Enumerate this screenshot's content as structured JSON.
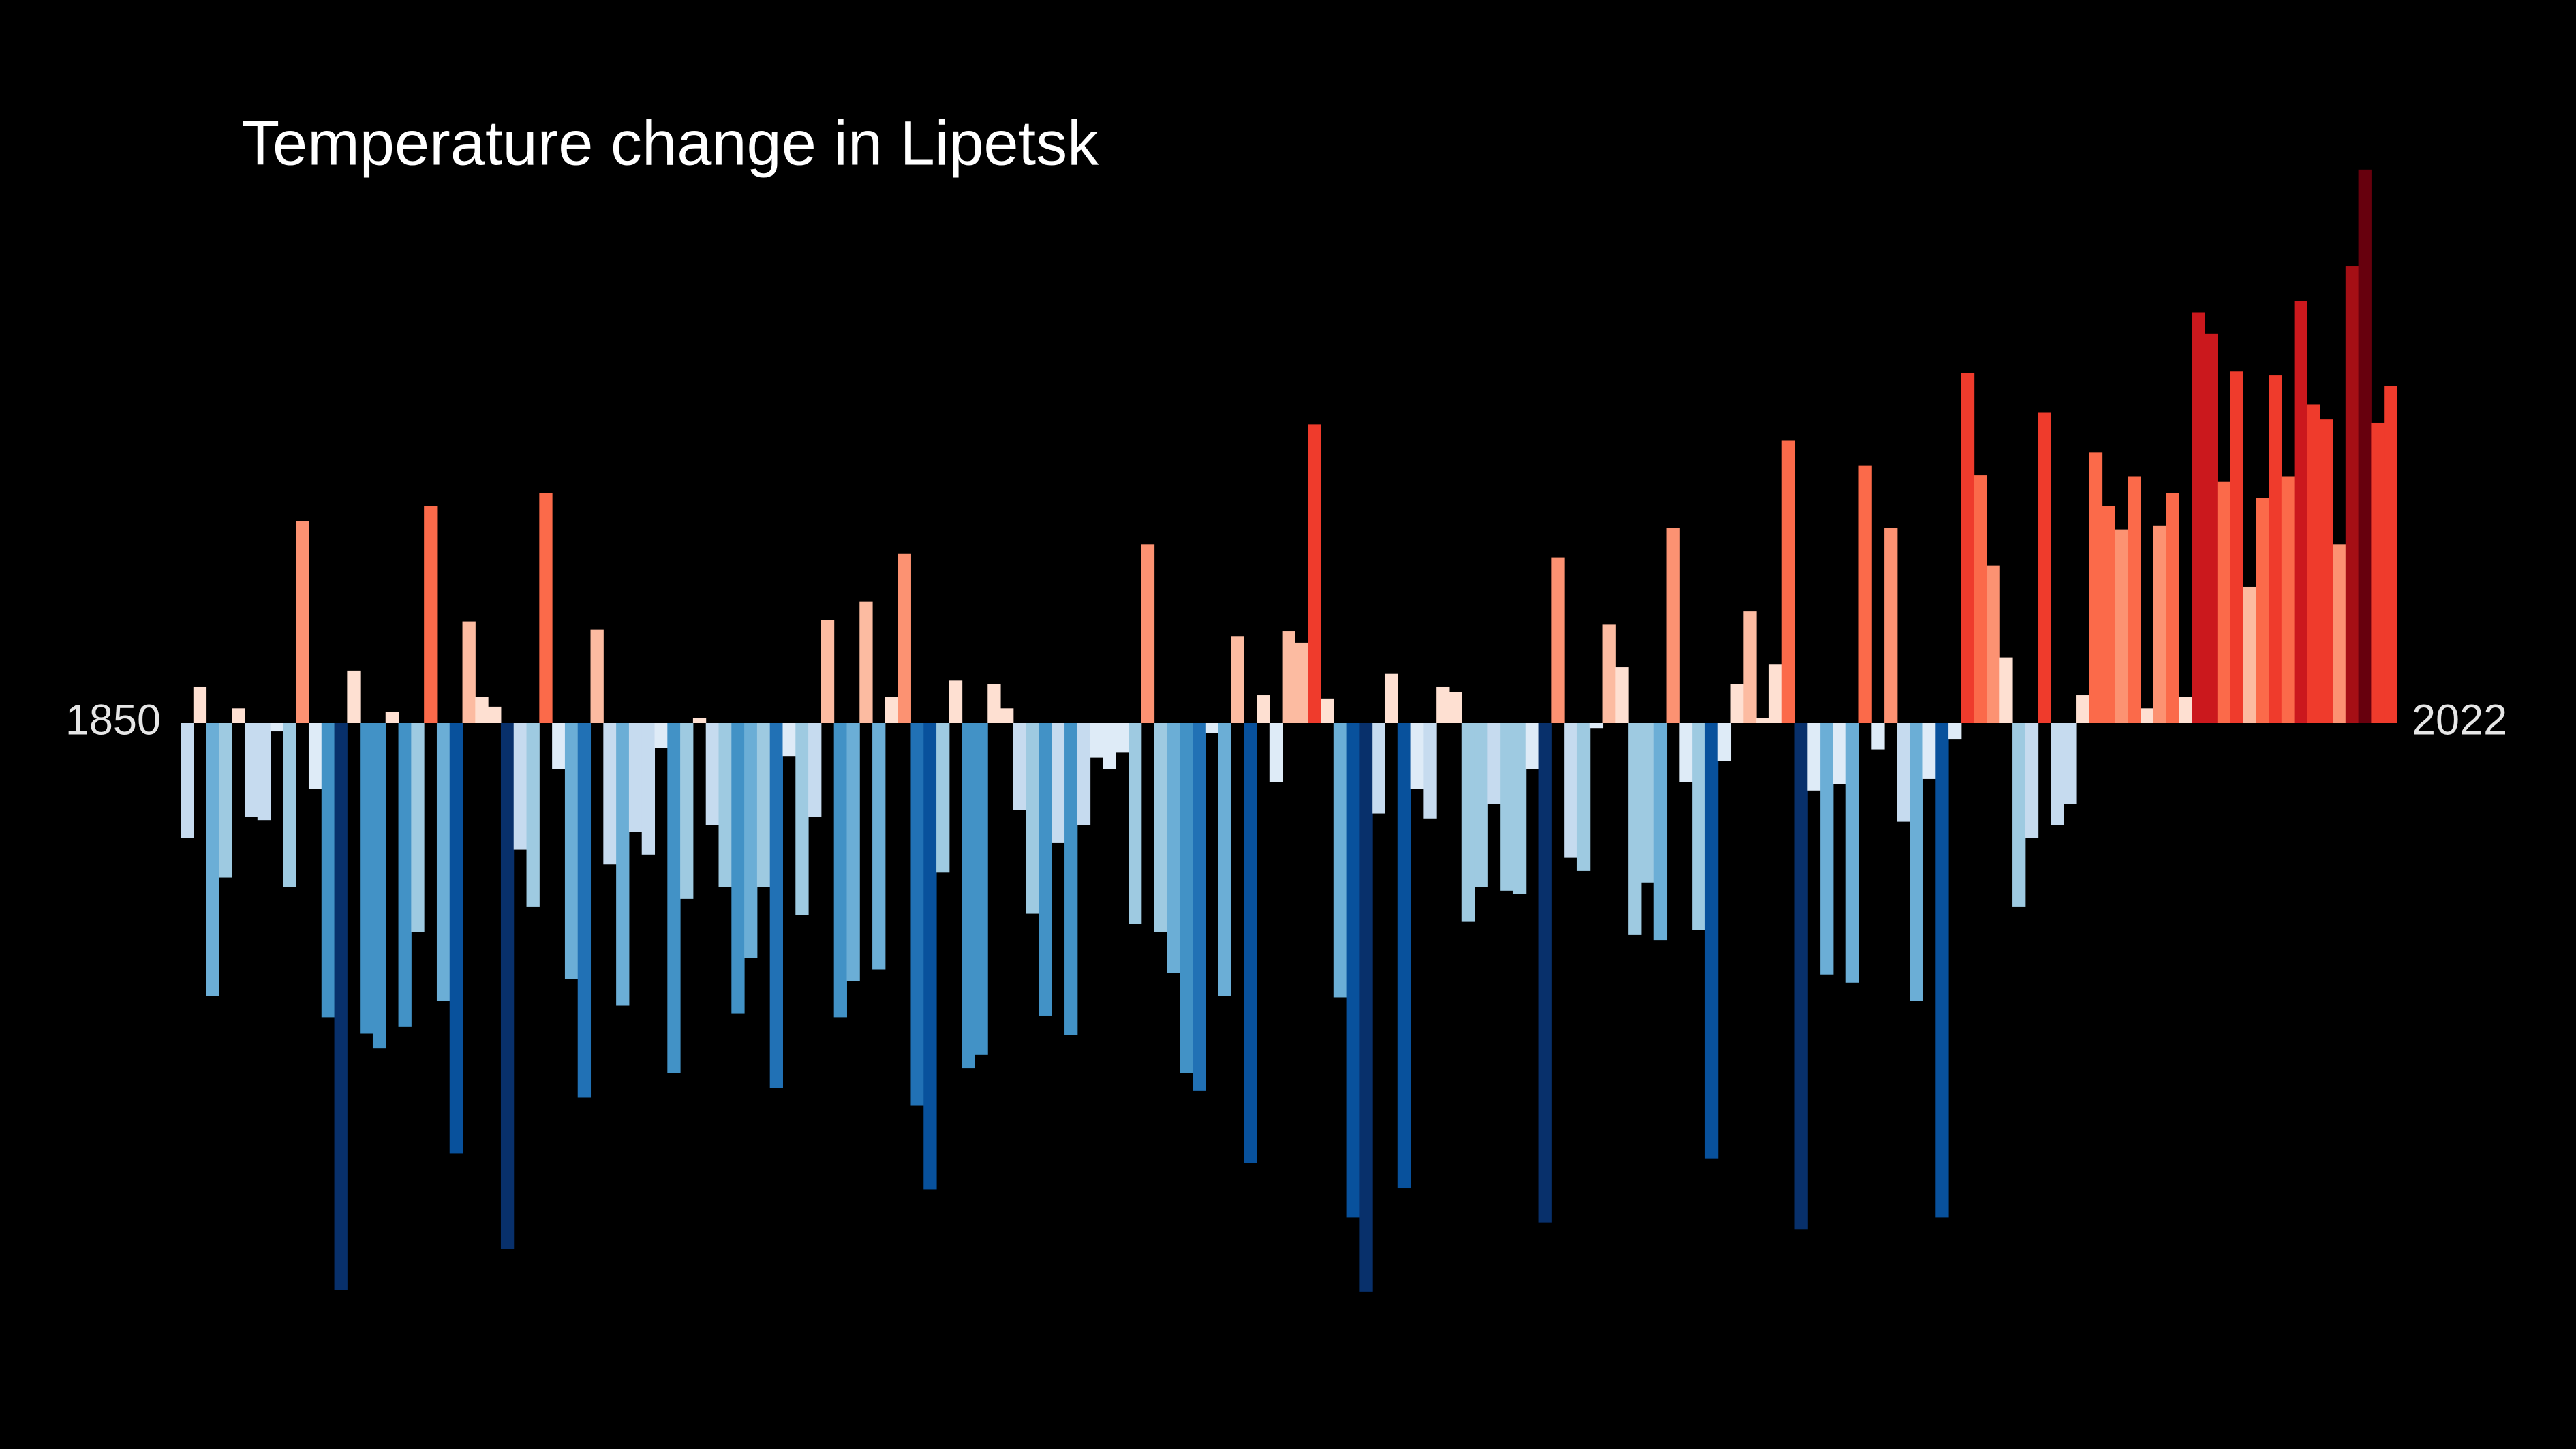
{
  "chart_data": {
    "type": "bar",
    "title": "Temperature change in Lipetsk",
    "categories": [
      "1850",
      null,
      null,
      null,
      null,
      null,
      null,
      null,
      null,
      null,
      null,
      null,
      null,
      null,
      null,
      null,
      null,
      null,
      null,
      null,
      null,
      null,
      null,
      null,
      null,
      null,
      null,
      null,
      null,
      null,
      null,
      null,
      null,
      null,
      null,
      null,
      null,
      null,
      null,
      null,
      null,
      null,
      null,
      null,
      null,
      null,
      null,
      null,
      null,
      null,
      null,
      null,
      null,
      null,
      null,
      null,
      null,
      null,
      null,
      null,
      null,
      null,
      null,
      null,
      null,
      null,
      null,
      null,
      null,
      null,
      null,
      null,
      null,
      null,
      null,
      null,
      null,
      null,
      null,
      null,
      null,
      null,
      null,
      null,
      null,
      null,
      null,
      null,
      null,
      null,
      null,
      null,
      null,
      null,
      null,
      null,
      null,
      null,
      null,
      null,
      null,
      null,
      null,
      null,
      null,
      null,
      null,
      null,
      null,
      null,
      null,
      null,
      null,
      null,
      null,
      null,
      null,
      null,
      null,
      null,
      null,
      null,
      null,
      null,
      null,
      null,
      null,
      null,
      null,
      null,
      null,
      null,
      null,
      null,
      null,
      null,
      null,
      null,
      null,
      null,
      null,
      null,
      null,
      null,
      null,
      null,
      null,
      null,
      null,
      null,
      null,
      null,
      null,
      null,
      null,
      null,
      null,
      null,
      null,
      null,
      null,
      null,
      null,
      null,
      null,
      null,
      null,
      null,
      null,
      null,
      null,
      null,
      "2022"
    ],
    "values": [
      -0.7,
      0.22,
      -1.66,
      -0.94,
      0.09,
      -0.57,
      -0.59,
      -0.05,
      -1.0,
      1.23,
      -0.4,
      -1.79,
      -3.45,
      0.32,
      -1.89,
      -1.98,
      0.07,
      -1.85,
      -1.27,
      1.32,
      -1.69,
      -2.62,
      0.62,
      0.16,
      0.1,
      -3.2,
      -0.77,
      -1.12,
      1.4,
      -0.28,
      -1.56,
      -2.28,
      0.57,
      -0.86,
      -1.72,
      -0.66,
      -0.8,
      -0.15,
      -2.13,
      -1.07,
      0.03,
      -0.62,
      -1.0,
      -1.77,
      -1.43,
      -1.0,
      -2.22,
      -0.2,
      -1.17,
      -0.57,
      0.63,
      -1.79,
      -1.57,
      0.74,
      -1.5,
      0.16,
      1.03,
      -2.33,
      -2.84,
      -0.91,
      0.26,
      -2.1,
      -2.02,
      0.24,
      0.09,
      -0.53,
      -1.16,
      -1.78,
      -0.73,
      -1.9,
      -0.62,
      -0.21,
      -0.28,
      -0.18,
      -1.22,
      1.09,
      -1.27,
      -1.52,
      -2.13,
      -2.24,
      -0.06,
      -1.66,
      0.53,
      -2.68,
      0.17,
      -0.36,
      0.56,
      0.49,
      1.82,
      0.15,
      -1.67,
      -3.01,
      -3.46,
      -0.55,
      0.3,
      -2.83,
      -0.4,
      -0.58,
      0.22,
      0.19,
      -1.21,
      -1.0,
      -0.49,
      -1.02,
      -1.04,
      -0.28,
      -3.04,
      1.01,
      -0.82,
      -0.9,
      -0.03,
      0.6,
      0.34,
      -1.29,
      -0.97,
      -1.32,
      1.19,
      -0.36,
      -1.26,
      -2.65,
      -0.23,
      0.24,
      0.68,
      0.03,
      0.36,
      1.72,
      -3.08,
      -0.41,
      -1.53,
      -0.37,
      -1.58,
      1.57,
      -0.16,
      1.19,
      -0.6,
      -1.69,
      -0.34,
      -3.01,
      -0.1,
      2.13,
      1.51,
      0.96,
      0.4,
      -1.12,
      -0.7,
      1.89,
      -0.62,
      -0.49,
      0.17,
      1.65,
      1.32,
      1.18,
      1.5,
      0.09,
      1.2,
      1.4,
      0.16,
      2.5,
      2.37,
      1.47,
      2.14,
      0.83,
      1.37,
      2.12,
      1.5,
      2.57,
      1.94,
      1.85,
      1.09,
      2.78,
      3.37,
      1.83,
      2.05
    ],
    "palette": [
      "#08306b",
      "#08519c",
      "#2171b5",
      "#4292c6",
      "#6baed6",
      "#9ecae1",
      "#c6dbef",
      "#deebf7",
      "#fee0d2",
      "#fcbba1",
      "#fc9272",
      "#fb6a4a",
      "#ef3b2c",
      "#cb181d",
      "#a50f15",
      "#67000d"
    ],
    "ylim": [
      -4,
      4
    ]
  }
}
